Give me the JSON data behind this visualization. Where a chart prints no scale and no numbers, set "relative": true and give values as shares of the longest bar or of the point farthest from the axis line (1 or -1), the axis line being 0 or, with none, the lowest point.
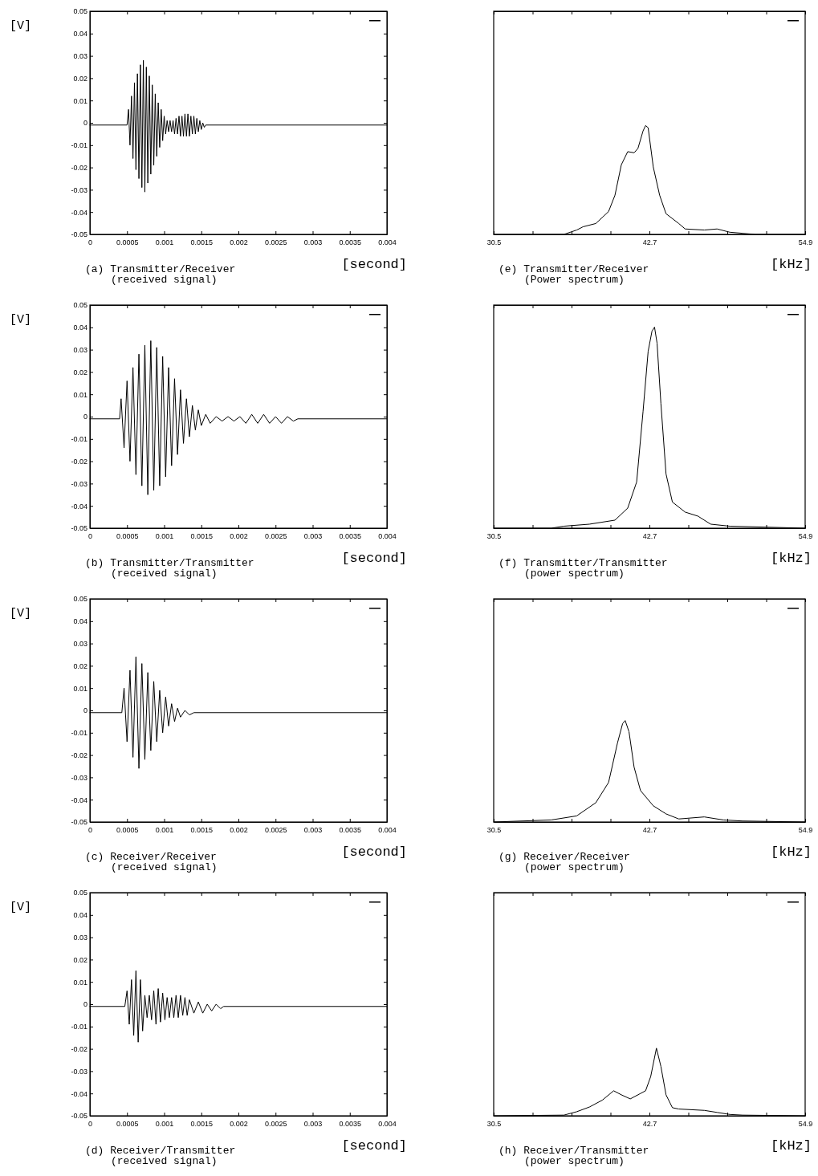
{
  "chart_data": [
    {
      "type": "line",
      "title": "(a) Transmitter/Receiver",
      "subtitle": "(received signal)",
      "xlabel": "[second]",
      "ylabel": "[V]",
      "xlim": [
        0,
        0.004
      ],
      "xticks": [
        0,
        0.0005,
        0.001,
        0.0015,
        0.002,
        0.0025,
        0.003,
        0.0035,
        0.004
      ],
      "ylim": [
        -0.05,
        0.05
      ],
      "yticks": [
        -0.05,
        -0.04,
        -0.03,
        -0.02,
        -0.01,
        0,
        0.01,
        0.02,
        0.03,
        0.04,
        0.05
      ],
      "series": [
        {
          "color": "#000000",
          "x": [
            0,
            0.0005,
            0.00052,
            0.00054,
            0.00056,
            0.00058,
            0.0006,
            0.00062,
            0.00064,
            0.00066,
            0.00068,
            0.0007,
            0.00072,
            0.00074,
            0.00076,
            0.00078,
            0.0008,
            0.00082,
            0.00084,
            0.00086,
            0.00088,
            0.0009,
            0.00092,
            0.00094,
            0.00096,
            0.00098,
            0.001,
            0.00102,
            0.00104,
            0.00106,
            0.00108,
            0.0011,
            0.00112,
            0.00114,
            0.00116,
            0.00118,
            0.0012,
            0.00122,
            0.00124,
            0.00126,
            0.00128,
            0.0013,
            0.00132,
            0.00134,
            0.00136,
            0.00138,
            0.0014,
            0.00142,
            0.00144,
            0.00146,
            0.00148,
            0.0015,
            0.00152,
            0.00154,
            0.00156,
            0.0016,
            0.004
          ],
          "values": [
            -0.001,
            -0.001,
            0.006,
            -0.01,
            0.012,
            -0.016,
            0.018,
            -0.021,
            0.022,
            -0.025,
            0.026,
            -0.029,
            0.028,
            -0.031,
            0.025,
            -0.027,
            0.021,
            -0.023,
            0.017,
            -0.019,
            0.013,
            -0.015,
            0.009,
            -0.011,
            0.006,
            -0.008,
            0.003,
            -0.005,
            0.001,
            -0.004,
            0.001,
            -0.004,
            0.001,
            -0.005,
            0.002,
            -0.005,
            0.003,
            -0.006,
            0.003,
            -0.006,
            0.004,
            -0.006,
            0.004,
            -0.006,
            0.003,
            -0.005,
            0.003,
            -0.005,
            0.002,
            -0.004,
            0.001,
            -0.003,
            0,
            -0.002,
            -0.001,
            -0.001,
            -0.001
          ]
        }
      ]
    },
    {
      "type": "line",
      "title": "(e) Transmitter/Receiver",
      "subtitle": "(Power spectrum)",
      "xlabel": "[kHz]",
      "relative": true,
      "xlim": [
        30.5,
        54.9
      ],
      "xticks": [
        30.5,
        {
          "value": 33.55,
          "label": null
        },
        {
          "value": 36.6,
          "label": null
        },
        {
          "value": 39.65,
          "label": null
        },
        42.7,
        {
          "value": 45.75,
          "label": null
        },
        {
          "value": 48.8,
          "label": null
        },
        {
          "value": 51.85,
          "label": null
        },
        54.9
      ],
      "series": [
        {
          "color": "#000000",
          "x": [
            30.5,
            36,
            37,
            37.5,
            38.5,
            39.5,
            40,
            40.5,
            41,
            41.5,
            41.8,
            42.2,
            42.4,
            42.6,
            43,
            43.5,
            44,
            45,
            45.5,
            47,
            48,
            49,
            50,
            51,
            54.9
          ],
          "values": [
            0,
            0,
            0.04,
            0.07,
            0.1,
            0.21,
            0.36,
            0.64,
            0.76,
            0.75,
            0.79,
            0.95,
            1,
            0.98,
            0.62,
            0.36,
            0.19,
            0.1,
            0.05,
            0.04,
            0.05,
            0.02,
            0.01,
            0,
            0
          ]
        }
      ]
    },
    {
      "type": "line",
      "title": "(b) Transmitter/Transmitter",
      "subtitle": "(received signal)",
      "xlabel": "[second]",
      "ylabel": "[V]",
      "xlim": [
        0,
        0.004
      ],
      "xticks": [
        0,
        0.0005,
        0.001,
        0.0015,
        0.002,
        0.0025,
        0.003,
        0.0035,
        0.004
      ],
      "ylim": [
        -0.05,
        0.05
      ],
      "yticks": [
        -0.05,
        -0.04,
        -0.03,
        -0.02,
        -0.01,
        0,
        0.01,
        0.02,
        0.03,
        0.04,
        0.05
      ],
      "series": [
        {
          "color": "#000000",
          "x": [
            0,
            0.0004,
            0.00042,
            0.00046,
            0.0005,
            0.00054,
            0.00058,
            0.00062,
            0.00066,
            0.0007,
            0.00074,
            0.00078,
            0.00082,
            0.00086,
            0.0009,
            0.00094,
            0.00098,
            0.00102,
            0.00106,
            0.0011,
            0.00114,
            0.00118,
            0.00122,
            0.00126,
            0.0013,
            0.00134,
            0.00138,
            0.00142,
            0.00146,
            0.0015,
            0.00156,
            0.00162,
            0.0017,
            0.00178,
            0.00186,
            0.00194,
            0.00202,
            0.0021,
            0.00218,
            0.00226,
            0.00234,
            0.00242,
            0.0025,
            0.00258,
            0.00266,
            0.00274,
            0.0028,
            0.004
          ],
          "values": [
            -0.001,
            -0.001,
            0.008,
            -0.014,
            0.016,
            -0.02,
            0.022,
            -0.026,
            0.028,
            -0.031,
            0.032,
            -0.035,
            0.034,
            -0.033,
            0.031,
            -0.031,
            0.027,
            -0.027,
            0.022,
            -0.022,
            0.017,
            -0.017,
            0.012,
            -0.012,
            0.008,
            -0.009,
            0.005,
            -0.006,
            0.003,
            -0.004,
            0.001,
            -0.003,
            0,
            -0.002,
            0,
            -0.002,
            0,
            -0.003,
            0.001,
            -0.003,
            0.001,
            -0.003,
            0,
            -0.003,
            0,
            -0.002,
            -0.001,
            -0.001
          ]
        }
      ]
    },
    {
      "type": "line",
      "title": "(f) Transmitter/Transmitter",
      "subtitle": "(power spectrum)",
      "xlabel": "[kHz]",
      "relative": true,
      "xlim": [
        30.5,
        54.9
      ],
      "xticks": [
        30.5,
        {
          "value": 33.55,
          "label": null
        },
        {
          "value": 36.6,
          "label": null
        },
        {
          "value": 39.65,
          "label": null
        },
        42.7,
        {
          "value": 45.75,
          "label": null
        },
        {
          "value": 48.8,
          "label": null
        },
        {
          "value": 51.85,
          "label": null
        },
        54.9
      ],
      "series": [
        {
          "color": "#000000",
          "x": [
            30.5,
            35,
            36,
            38,
            40,
            41,
            41.7,
            42.2,
            42.6,
            42.9,
            43.1,
            43.3,
            43.6,
            44,
            44.5,
            45.5,
            46.5,
            47.5,
            49,
            54.9
          ],
          "values": [
            0,
            0,
            0.01,
            0.02,
            0.04,
            0.1,
            0.23,
            0.58,
            0.88,
            0.98,
            1,
            0.92,
            0.62,
            0.27,
            0.13,
            0.08,
            0.06,
            0.02,
            0.01,
            0
          ]
        }
      ]
    },
    {
      "type": "line",
      "title": "(c) Receiver/Receiver",
      "subtitle": "(received signal)",
      "xlabel": "[second]",
      "ylabel": "[V]",
      "xlim": [
        0,
        0.004
      ],
      "xticks": [
        0,
        0.0005,
        0.001,
        0.0015,
        0.002,
        0.0025,
        0.003,
        0.0035,
        0.004
      ],
      "ylim": [
        -0.05,
        0.05
      ],
      "yticks": [
        -0.05,
        -0.04,
        -0.03,
        -0.02,
        -0.01,
        0,
        0.01,
        0.02,
        0.03,
        0.04,
        0.05
      ],
      "series": [
        {
          "color": "#000000",
          "x": [
            0,
            0.00043,
            0.00046,
            0.0005,
            0.00054,
            0.00058,
            0.00062,
            0.00066,
            0.0007,
            0.00074,
            0.00078,
            0.00082,
            0.00086,
            0.0009,
            0.00094,
            0.00098,
            0.00102,
            0.00106,
            0.0011,
            0.00114,
            0.00118,
            0.00122,
            0.00128,
            0.00134,
            0.0014,
            0.004
          ],
          "values": [
            -0.001,
            -0.001,
            0.01,
            -0.014,
            0.018,
            -0.021,
            0.024,
            -0.026,
            0.021,
            -0.022,
            0.017,
            -0.018,
            0.013,
            -0.014,
            0.009,
            -0.01,
            0.006,
            -0.007,
            0.003,
            -0.005,
            0.001,
            -0.003,
            0,
            -0.002,
            -0.001,
            -0.001
          ]
        }
      ]
    },
    {
      "type": "line",
      "title": "(g) Receiver/Receiver",
      "subtitle": "(power spectrum)",
      "xlabel": "[kHz]",
      "relative": true,
      "xlim": [
        30.5,
        54.9
      ],
      "xticks": [
        30.5,
        {
          "value": 33.55,
          "label": null
        },
        {
          "value": 36.6,
          "label": null
        },
        {
          "value": 39.65,
          "label": null
        },
        42.7,
        {
          "value": 45.75,
          "label": null
        },
        {
          "value": 48.8,
          "label": null
        },
        {
          "value": 51.85,
          "label": null
        },
        54.9
      ],
      "series": [
        {
          "color": "#000000",
          "x": [
            30.5,
            35,
            37,
            38.5,
            39.5,
            40.2,
            40.6,
            40.8,
            41.1,
            41.5,
            42,
            43,
            44,
            45,
            47,
            48.5,
            50,
            54.9
          ],
          "values": [
            0,
            0.02,
            0.06,
            0.19,
            0.39,
            0.78,
            0.97,
            1,
            0.89,
            0.54,
            0.31,
            0.16,
            0.08,
            0.03,
            0.05,
            0.02,
            0.01,
            0
          ]
        }
      ]
    },
    {
      "type": "line",
      "title": "(d) Receiver/Transmitter",
      "subtitle": "(received signal)",
      "xlabel": "[second]",
      "ylabel": "[V]",
      "xlim": [
        0,
        0.004
      ],
      "xticks": [
        0,
        0.0005,
        0.001,
        0.0015,
        0.002,
        0.0025,
        0.003,
        0.0035,
        0.004
      ],
      "ylim": [
        -0.05,
        0.05
      ],
      "yticks": [
        -0.05,
        -0.04,
        -0.03,
        -0.02,
        -0.01,
        0,
        0.01,
        0.02,
        0.03,
        0.04,
        0.05
      ],
      "series": [
        {
          "color": "#000000",
          "x": [
            0,
            0.00047,
            0.0005,
            0.00053,
            0.00056,
            0.00059,
            0.00062,
            0.00065,
            0.00068,
            0.00071,
            0.00074,
            0.00077,
            0.0008,
            0.00083,
            0.00086,
            0.00089,
            0.00092,
            0.00095,
            0.00098,
            0.00101,
            0.00104,
            0.00107,
            0.0011,
            0.00113,
            0.00116,
            0.00119,
            0.00122,
            0.00125,
            0.00128,
            0.00131,
            0.00134,
            0.0014,
            0.00146,
            0.00152,
            0.00158,
            0.00164,
            0.0017,
            0.00176,
            0.0018,
            0.004
          ],
          "values": [
            -0.001,
            -0.001,
            0.006,
            -0.009,
            0.011,
            -0.014,
            0.015,
            -0.017,
            0.011,
            -0.012,
            0.004,
            -0.006,
            0.004,
            -0.007,
            0.006,
            -0.009,
            0.007,
            -0.008,
            0.005,
            -0.007,
            0.003,
            -0.006,
            0.003,
            -0.006,
            0.004,
            -0.006,
            0.004,
            -0.005,
            0.003,
            -0.005,
            0.002,
            -0.004,
            0.001,
            -0.004,
            0,
            -0.003,
            0,
            -0.002,
            -0.001,
            -0.001
          ]
        }
      ]
    },
    {
      "type": "line",
      "title": "(h) Receiver/Transmitter",
      "subtitle": "(power spectrum)",
      "xlabel": "[kHz]",
      "relative": true,
      "xlim": [
        30.5,
        54.9
      ],
      "xticks": [
        30.5,
        {
          "value": 33.55,
          "label": null
        },
        {
          "value": 36.6,
          "label": null
        },
        {
          "value": 39.65,
          "label": null
        },
        42.7,
        {
          "value": 45.75,
          "label": null
        },
        {
          "value": 48.8,
          "label": null
        },
        {
          "value": 51.85,
          "label": null
        },
        54.9
      ],
      "series": [
        {
          "color": "#000000",
          "x": [
            30.5,
            36,
            37,
            38,
            39,
            39.9,
            40.5,
            41.2,
            42,
            42.4,
            42.8,
            43.25,
            43.6,
            44,
            44.5,
            45,
            47,
            48,
            49,
            50,
            54.9
          ],
          "values": [
            0,
            0.01,
            0.06,
            0.13,
            0.23,
            0.37,
            0.31,
            0.25,
            0.33,
            0.37,
            0.58,
            1,
            0.73,
            0.31,
            0.12,
            0.1,
            0.08,
            0.05,
            0.02,
            0.01,
            0
          ]
        }
      ]
    }
  ]
}
